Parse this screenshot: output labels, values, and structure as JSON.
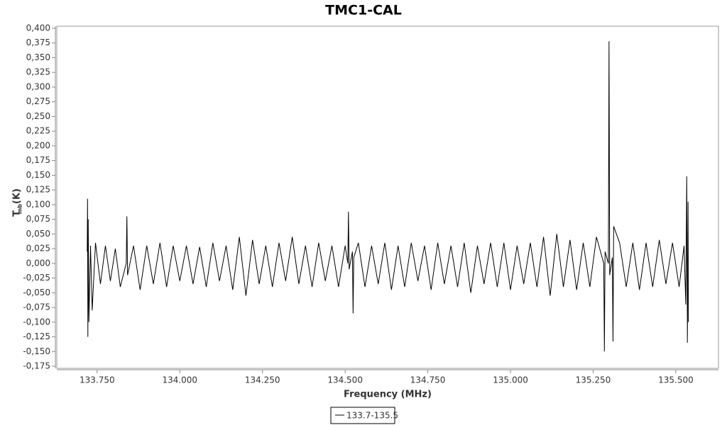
{
  "chart_data": {
    "type": "line",
    "title": "TMC1-CAL",
    "xlabel": "Frequency (MHz)",
    "ylabel": {
      "main": "T",
      "sub": "mb",
      "unit": "(K)"
    },
    "x": [
      133.72,
      133.721,
      133.722,
      133.723,
      133.725,
      133.73,
      133.735,
      133.745,
      133.76,
      133.775,
      133.79,
      133.805,
      133.82,
      133.838,
      133.84,
      133.842,
      133.86,
      133.88,
      133.9,
      133.92,
      133.94,
      133.96,
      133.98,
      134.0,
      134.02,
      134.04,
      134.06,
      134.08,
      134.1,
      134.12,
      134.14,
      134.16,
      134.18,
      134.2,
      134.22,
      134.24,
      134.26,
      134.28,
      134.3,
      134.32,
      134.34,
      134.36,
      134.38,
      134.4,
      134.42,
      134.44,
      134.46,
      134.48,
      134.5,
      134.508,
      134.51,
      134.512,
      134.522,
      134.524,
      134.526,
      134.54,
      134.56,
      134.58,
      134.6,
      134.62,
      134.64,
      134.66,
      134.68,
      134.7,
      134.72,
      134.74,
      134.76,
      134.78,
      134.8,
      134.82,
      134.84,
      134.86,
      134.88,
      134.9,
      134.92,
      134.94,
      134.96,
      134.98,
      135.0,
      135.02,
      135.04,
      135.06,
      135.08,
      135.1,
      135.12,
      135.14,
      135.16,
      135.18,
      135.2,
      135.22,
      135.24,
      135.26,
      135.282,
      135.284,
      135.286,
      135.296,
      135.298,
      135.3,
      135.308,
      135.31,
      135.312,
      135.33,
      135.35,
      135.37,
      135.39,
      135.41,
      135.43,
      135.45,
      135.47,
      135.49,
      135.51,
      135.525,
      135.53,
      135.533,
      135.535,
      135.537,
      135.538
    ],
    "series": [
      {
        "name": "133.7-135.5",
        "color": "#000000",
        "values": [
          0.02,
          0.11,
          -0.125,
          0.075,
          -0.1,
          0.03,
          -0.08,
          0.035,
          -0.035,
          0.03,
          -0.03,
          0.025,
          -0.04,
          0.0,
          0.08,
          -0.02,
          0.03,
          -0.045,
          0.03,
          -0.035,
          0.035,
          -0.04,
          0.03,
          -0.03,
          0.03,
          -0.035,
          0.028,
          -0.04,
          0.035,
          -0.03,
          0.03,
          -0.045,
          0.045,
          -0.055,
          0.04,
          -0.035,
          0.03,
          -0.04,
          0.035,
          -0.03,
          0.045,
          -0.035,
          0.03,
          -0.04,
          0.035,
          -0.03,
          0.03,
          -0.04,
          0.03,
          0.0,
          0.088,
          -0.01,
          0.02,
          -0.085,
          0.01,
          0.035,
          -0.04,
          0.03,
          -0.035,
          0.035,
          -0.045,
          0.03,
          -0.04,
          0.035,
          -0.03,
          0.03,
          -0.045,
          0.035,
          -0.035,
          0.03,
          -0.04,
          0.035,
          -0.05,
          0.03,
          -0.035,
          0.035,
          -0.04,
          0.035,
          -0.045,
          0.03,
          -0.035,
          0.035,
          -0.04,
          0.045,
          -0.055,
          0.05,
          -0.04,
          0.04,
          -0.045,
          0.035,
          -0.04,
          0.045,
          0.0,
          -0.15,
          0.02,
          0.0,
          0.378,
          -0.02,
          0.01,
          -0.133,
          0.063,
          0.035,
          -0.04,
          0.035,
          -0.045,
          0.035,
          -0.04,
          0.04,
          -0.035,
          0.035,
          -0.04,
          0.03,
          -0.07,
          0.148,
          -0.135,
          0.105,
          -0.1
        ]
      }
    ],
    "xlim": [
      133.628,
      135.629
    ],
    "ylim": [
      -0.1786,
      0.4036
    ],
    "xticks": [
      {
        "value": 133.75,
        "label": "133.750"
      },
      {
        "value": 134.0,
        "label": "134.000"
      },
      {
        "value": 134.25,
        "label": "134.250"
      },
      {
        "value": 134.5,
        "label": "134.500"
      },
      {
        "value": 134.75,
        "label": "134.750"
      },
      {
        "value": 135.0,
        "label": "135.000"
      },
      {
        "value": 135.25,
        "label": "135.250"
      },
      {
        "value": 135.5,
        "label": "135.500"
      }
    ],
    "yticks": [
      {
        "value": 0.4,
        "label": "0,400"
      },
      {
        "value": 0.375,
        "label": "0,375"
      },
      {
        "value": 0.35,
        "label": "0,350"
      },
      {
        "value": 0.325,
        "label": "0,325"
      },
      {
        "value": 0.3,
        "label": "0,300"
      },
      {
        "value": 0.275,
        "label": "0,275"
      },
      {
        "value": 0.25,
        "label": "0,250"
      },
      {
        "value": 0.225,
        "label": "0,225"
      },
      {
        "value": 0.2,
        "label": "0,200"
      },
      {
        "value": 0.175,
        "label": "0,175"
      },
      {
        "value": 0.15,
        "label": "0,150"
      },
      {
        "value": 0.125,
        "label": "0,125"
      },
      {
        "value": 0.1,
        "label": "0,100"
      },
      {
        "value": 0.075,
        "label": "0,075"
      },
      {
        "value": 0.05,
        "label": "0,050"
      },
      {
        "value": 0.025,
        "label": "0,025"
      },
      {
        "value": 0.0,
        "label": "0,000"
      },
      {
        "value": -0.025,
        "label": "-0,025"
      },
      {
        "value": -0.05,
        "label": "-0,050"
      },
      {
        "value": -0.075,
        "label": "-0,075"
      },
      {
        "value": -0.1,
        "label": "-0,100"
      },
      {
        "value": -0.125,
        "label": "-0,125"
      },
      {
        "value": -0.15,
        "label": "-0,150"
      },
      {
        "value": -0.175,
        "label": "-0,175"
      }
    ]
  }
}
